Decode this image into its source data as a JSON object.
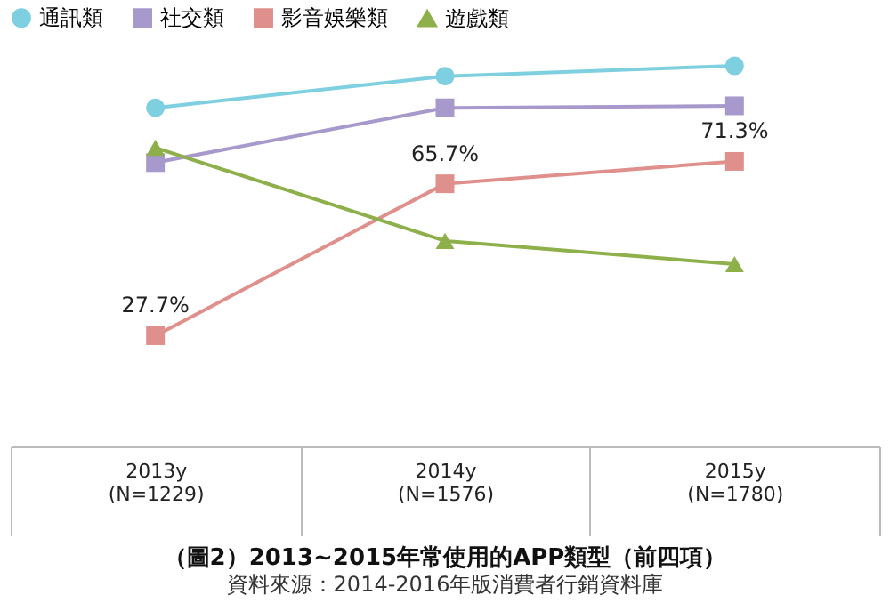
{
  "chart_data": {
    "type": "line",
    "title": "（圖2）2013~2015年常使用的APP類型（前四項）",
    "annotations": [
      "資料來源：2014-2016年版消費者行銷資料庫"
    ],
    "categories": [
      "2013y\n(N=1229)",
      "2014y\n(N=1576)",
      "2015y\n(N=1780)"
    ],
    "tick_labels": "x",
    "grid": false,
    "legend": "top",
    "series": [
      {
        "name": "通訊類",
        "color": "#7ecfe0",
        "marker": "circle",
        "values": [
          84.7,
          92.6,
          95.2
        ]
      },
      {
        "name": "社交類",
        "color": "#a899cc",
        "marker": "square",
        "values": [
          71.0,
          84.7,
          85.2
        ]
      },
      {
        "name": "影音娛樂類",
        "color": "#e0908c",
        "marker": "square",
        "values": [
          27.7,
          65.7,
          71.3
        ],
        "value_labels": [
          "27.7%",
          "65.7%",
          "71.3%"
        ]
      },
      {
        "name": "遊戲類",
        "color": "#8db04a",
        "marker": "triangle",
        "values": [
          74.7,
          51.4,
          45.6
        ]
      }
    ]
  }
}
